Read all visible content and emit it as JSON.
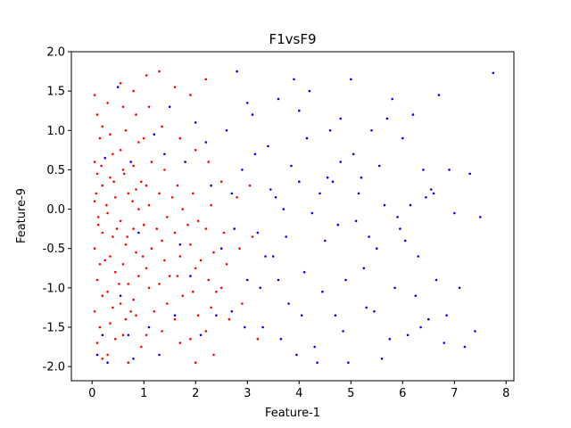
{
  "chart_data": {
    "type": "scatter",
    "title": "F1vsF9",
    "xlabel": "Feature-1",
    "ylabel": "Feature-9",
    "xlim": [
      -0.4,
      8.15
    ],
    "ylim": [
      -2.18,
      2.0
    ],
    "xticks": [
      0,
      1,
      2,
      3,
      4,
      5,
      6,
      7,
      8
    ],
    "yticks": [
      -2.0,
      -1.5,
      -1.0,
      -0.5,
      0.0,
      0.5,
      1.0,
      1.5,
      2.0
    ],
    "grid": false,
    "legend": "none",
    "series": [
      {
        "color": "#ff0000",
        "points": [
          [
            0.05,
            1.45
          ],
          [
            0.1,
            1.2
          ],
          [
            0.2,
            1.05
          ],
          [
            0.15,
            0.9
          ],
          [
            0.05,
            0.6
          ],
          [
            0.1,
            0.45
          ],
          [
            0.2,
            0.3
          ],
          [
            0.05,
            0.1
          ],
          [
            0.12,
            -0.1
          ],
          [
            0.2,
            -0.3
          ],
          [
            0.05,
            -0.5
          ],
          [
            0.15,
            -0.7
          ],
          [
            0.1,
            -0.9
          ],
          [
            0.2,
            -1.1
          ],
          [
            0.05,
            -1.3
          ],
          [
            0.15,
            -1.5
          ],
          [
            0.1,
            -1.7
          ],
          [
            0.2,
            -1.9
          ],
          [
            0.3,
            1.35
          ],
          [
            0.35,
            0.95
          ],
          [
            0.4,
            0.7
          ],
          [
            0.35,
            0.4
          ],
          [
            0.45,
            0.15
          ],
          [
            0.3,
            -0.05
          ],
          [
            0.4,
            -0.35
          ],
          [
            0.35,
            -0.6
          ],
          [
            0.45,
            -0.8
          ],
          [
            0.3,
            -1.05
          ],
          [
            0.4,
            -1.25
          ],
          [
            0.35,
            -1.45
          ],
          [
            0.45,
            -1.65
          ],
          [
            0.3,
            -1.85
          ],
          [
            0.55,
            1.6
          ],
          [
            0.6,
            1.3
          ],
          [
            0.65,
            1.0
          ],
          [
            0.55,
            0.75
          ],
          [
            0.6,
            0.5
          ],
          [
            0.7,
            0.2
          ],
          [
            0.55,
            -0.15
          ],
          [
            0.65,
            -0.45
          ],
          [
            0.6,
            -0.7
          ],
          [
            0.7,
            -0.95
          ],
          [
            0.55,
            -1.2
          ],
          [
            0.65,
            -1.4
          ],
          [
            0.6,
            -1.6
          ],
          [
            0.7,
            -1.95
          ],
          [
            0.8,
            1.5
          ],
          [
            0.85,
            1.2
          ],
          [
            0.9,
            0.85
          ],
          [
            0.8,
            0.55
          ],
          [
            0.85,
            0.25
          ],
          [
            0.9,
            0.0
          ],
          [
            0.8,
            -0.25
          ],
          [
            0.85,
            -0.55
          ],
          [
            0.9,
            -0.85
          ],
          [
            0.8,
            -1.15
          ],
          [
            0.85,
            -1.35
          ],
          [
            0.95,
            -1.75
          ],
          [
            1.05,
            1.7
          ],
          [
            1.1,
            1.3
          ],
          [
            1.0,
            0.9
          ],
          [
            1.15,
            0.6
          ],
          [
            1.05,
            0.3
          ],
          [
            1.1,
            0.05
          ],
          [
            1.0,
            -0.2
          ],
          [
            1.15,
            -0.5
          ],
          [
            1.05,
            -0.75
          ],
          [
            1.1,
            -1.0
          ],
          [
            1.2,
            -1.3
          ],
          [
            1.05,
            -1.6
          ],
          [
            1.3,
            1.75
          ],
          [
            1.35,
            1.05
          ],
          [
            1.4,
            0.5
          ],
          [
            1.3,
            0.2
          ],
          [
            1.45,
            -0.1
          ],
          [
            1.35,
            -0.4
          ],
          [
            1.4,
            -0.65
          ],
          [
            1.3,
            -0.95
          ],
          [
            1.45,
            -1.2
          ],
          [
            1.35,
            -1.55
          ],
          [
            1.6,
            1.55
          ],
          [
            1.7,
            0.9
          ],
          [
            1.65,
            0.3
          ],
          [
            1.75,
            0.0
          ],
          [
            1.6,
            -0.3
          ],
          [
            1.7,
            -0.6
          ],
          [
            1.65,
            -0.85
          ],
          [
            1.75,
            -1.1
          ],
          [
            1.6,
            -1.4
          ],
          [
            1.7,
            -1.7
          ],
          [
            1.9,
            1.45
          ],
          [
            2.0,
            0.75
          ],
          [
            1.95,
            0.2
          ],
          [
            2.05,
            -0.15
          ],
          [
            1.9,
            -0.45
          ],
          [
            2.0,
            -0.75
          ],
          [
            1.95,
            -1.05
          ],
          [
            2.05,
            -1.35
          ],
          [
            1.9,
            -1.65
          ],
          [
            2.0,
            -1.95
          ],
          [
            2.2,
            1.65
          ],
          [
            2.25,
            0.6
          ],
          [
            2.3,
            0.05
          ],
          [
            2.2,
            -0.25
          ],
          [
            2.35,
            -0.55
          ],
          [
            2.25,
            -0.9
          ],
          [
            2.3,
            -1.25
          ],
          [
            2.2,
            -1.55
          ],
          [
            2.35,
            -1.85
          ],
          [
            2.5,
            0.35
          ],
          [
            2.55,
            -0.3
          ],
          [
            2.6,
            -0.7
          ],
          [
            2.5,
            -1.0
          ],
          [
            2.65,
            -1.4
          ],
          [
            2.8,
            0.15
          ],
          [
            2.85,
            -0.5
          ],
          [
            2.9,
            -1.2
          ],
          [
            3.05,
            0.3
          ],
          [
            3.1,
            -0.35
          ],
          [
            3.2,
            -1.65
          ],
          [
            0.08,
            0.2
          ],
          [
            0.12,
            -0.2
          ],
          [
            0.18,
            0.55
          ],
          [
            0.25,
            -0.65
          ],
          [
            0.28,
            0.05
          ],
          [
            0.42,
            0.35
          ],
          [
            0.48,
            -0.25
          ],
          [
            0.52,
            -0.95
          ],
          [
            0.62,
            0.45
          ],
          [
            0.68,
            -0.35
          ],
          [
            0.75,
            -1.3
          ],
          [
            0.78,
            0.1
          ],
          [
            0.95,
            0.35
          ],
          [
            0.98,
            -0.6
          ],
          [
            1.25,
            -0.25
          ],
          [
            1.5,
            -0.85
          ],
          [
            1.55,
            0.15
          ],
          [
            1.85,
            -0.2
          ],
          [
            2.1,
            -0.65
          ],
          [
            2.4,
            -1.05
          ]
        ]
      },
      {
        "color": "#0000ff",
        "points": [
          [
            0.1,
            -1.85
          ],
          [
            0.2,
            -1.6
          ],
          [
            0.25,
            0.65
          ],
          [
            0.3,
            -1.95
          ],
          [
            0.5,
            1.55
          ],
          [
            0.55,
            -1.1
          ],
          [
            0.7,
            -1.6
          ],
          [
            0.75,
            0.6
          ],
          [
            0.8,
            -1.9
          ],
          [
            0.9,
            -0.3
          ],
          [
            1.1,
            -1.5
          ],
          [
            1.2,
            0.95
          ],
          [
            1.3,
            -1.85
          ],
          [
            1.5,
            1.3
          ],
          [
            1.6,
            -1.35
          ],
          [
            1.8,
            0.6
          ],
          [
            1.9,
            -0.85
          ],
          [
            2.0,
            1.1
          ],
          [
            2.1,
            -1.6
          ],
          [
            2.3,
            0.3
          ],
          [
            2.5,
            -0.5
          ],
          [
            2.6,
            1.0
          ],
          [
            2.7,
            -1.3
          ],
          [
            2.8,
            1.75
          ],
          [
            2.9,
            0.5
          ],
          [
            3.0,
            -0.9
          ],
          [
            3.1,
            1.2
          ],
          [
            3.2,
            -0.3
          ],
          [
            3.3,
            -1.5
          ],
          [
            3.4,
            0.8
          ],
          [
            3.5,
            -0.6
          ],
          [
            3.6,
            1.4
          ],
          [
            3.7,
            0.0
          ],
          [
            3.8,
            -1.2
          ],
          [
            3.9,
            1.65
          ],
          [
            4.0,
            0.35
          ],
          [
            4.1,
            -0.8
          ],
          [
            4.2,
            1.5
          ],
          [
            4.3,
            -1.75
          ],
          [
            4.4,
            0.2
          ],
          [
            4.5,
            -0.4
          ],
          [
            4.6,
            1.0
          ],
          [
            4.7,
            -1.35
          ],
          [
            4.8,
            0.6
          ],
          [
            4.9,
            -0.9
          ],
          [
            5.0,
            1.65
          ],
          [
            5.1,
            -0.15
          ],
          [
            5.2,
            0.4
          ],
          [
            5.3,
            -1.25
          ],
          [
            5.4,
            1.0
          ],
          [
            5.5,
            -0.5
          ],
          [
            5.6,
            -1.9
          ],
          [
            5.8,
            1.4
          ],
          [
            5.9,
            -0.1
          ],
          [
            6.0,
            0.9
          ],
          [
            6.1,
            -1.6
          ],
          [
            6.2,
            1.2
          ],
          [
            6.3,
            -0.6
          ],
          [
            6.4,
            0.5
          ],
          [
            6.5,
            -1.4
          ],
          [
            6.6,
            0.2
          ],
          [
            6.7,
            1.45
          ],
          [
            6.8,
            -1.7
          ],
          [
            6.9,
            0.5
          ],
          [
            7.0,
            -0.05
          ],
          [
            7.1,
            -1.0
          ],
          [
            7.3,
            0.45
          ],
          [
            7.4,
            -1.55
          ],
          [
            7.5,
            -0.1
          ],
          [
            7.75,
            1.73
          ],
          [
            3.25,
            -1.0
          ],
          [
            3.45,
            0.25
          ],
          [
            3.65,
            -1.65
          ],
          [
            3.85,
            0.55
          ],
          [
            4.05,
            -1.35
          ],
          [
            4.25,
            -0.05
          ],
          [
            4.45,
            -1.05
          ],
          [
            4.65,
            0.35
          ],
          [
            4.85,
            -1.55
          ],
          [
            5.05,
            0.7
          ],
          [
            5.25,
            -0.75
          ],
          [
            5.45,
            -1.3
          ],
          [
            5.65,
            0.05
          ],
          [
            5.85,
            -1.0
          ],
          [
            6.05,
            -0.4
          ],
          [
            6.25,
            -1.1
          ],
          [
            6.45,
            0.15
          ],
          [
            6.65,
            -0.9
          ],
          [
            6.85,
            -1.35
          ],
          [
            7.2,
            -1.75
          ],
          [
            2.7,
            0.2
          ],
          [
            2.95,
            -1.5
          ],
          [
            3.15,
            0.7
          ],
          [
            3.35,
            -0.6
          ],
          [
            3.55,
            0.15
          ],
          [
            3.75,
            -0.35
          ],
          [
            3.95,
            -1.85
          ],
          [
            4.15,
            0.9
          ],
          [
            4.35,
            -1.95
          ],
          [
            4.55,
            0.4
          ],
          [
            4.75,
            -0.2
          ],
          [
            4.95,
            -1.95
          ],
          [
            5.15,
            0.2
          ],
          [
            5.35,
            -0.35
          ],
          [
            5.55,
            0.55
          ],
          [
            5.75,
            -1.65
          ],
          [
            5.95,
            -0.25
          ],
          [
            6.15,
            0.05
          ],
          [
            6.35,
            -1.5
          ],
          [
            6.55,
            0.25
          ],
          [
            1.4,
            0.7
          ],
          [
            1.7,
            -0.45
          ],
          [
            2.2,
            0.85
          ],
          [
            2.4,
            -1.35
          ],
          [
            2.75,
            -0.25
          ],
          [
            3.0,
            1.35
          ],
          [
            3.6,
            -0.9
          ],
          [
            4.0,
            1.25
          ],
          [
            4.8,
            1.15
          ],
          [
            5.7,
            1.15
          ]
        ]
      }
    ]
  }
}
